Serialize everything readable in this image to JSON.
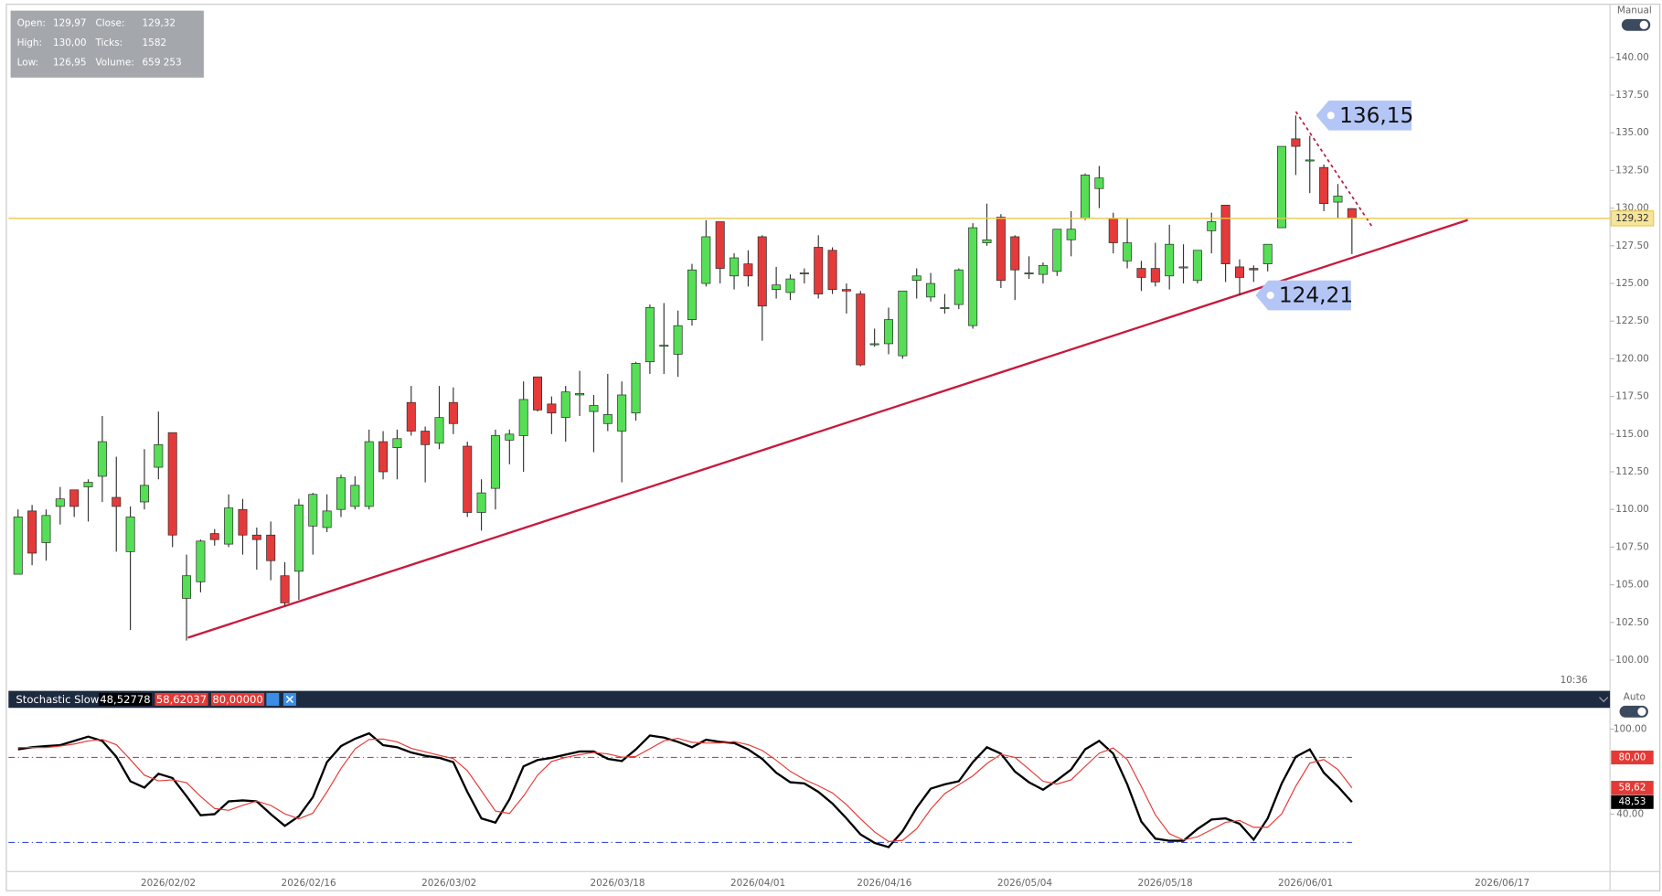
{
  "ui": {
    "info": [
      [
        "Open:",
        "129,97",
        "Close:",
        "129,32"
      ],
      [
        "High:",
        "130,00",
        "Ticks:",
        "1582"
      ],
      [
        "Low:",
        "126,95",
        "Volume:",
        "659 253"
      ]
    ],
    "mode_top": "Manual",
    "mode_bottom": "Auto",
    "clock": "10:36"
  },
  "chart_data": [
    {
      "type": "candlestick",
      "up_color": "#56de56",
      "down_color": "#e53a3a",
      "categories": [
        null,
        null,
        null,
        null,
        null,
        null,
        null,
        null,
        null,
        null,
        null,
        "2026/02/02",
        null,
        null,
        null,
        null,
        null,
        null,
        null,
        null,
        null,
        "2026/02/16",
        null,
        null,
        null,
        null,
        null,
        null,
        null,
        null,
        null,
        "2026/03/02",
        null,
        null,
        null,
        null,
        null,
        null,
        null,
        null,
        null,
        null,
        null,
        "2026/03/18",
        null,
        null,
        null,
        null,
        null,
        null,
        null,
        null,
        null,
        "2026/04/01",
        null,
        null,
        null,
        null,
        null,
        null,
        null,
        null,
        "2026/04/16",
        null,
        null,
        null,
        null,
        null,
        null,
        null,
        null,
        null,
        "2026/05/04",
        null,
        null,
        null,
        null,
        null,
        null,
        null,
        null,
        null,
        "2026/05/18",
        null,
        null,
        null,
        null,
        null,
        null,
        null,
        null,
        null,
        "2026/06/01",
        null,
        null,
        null,
        null,
        null,
        null,
        null,
        null,
        null,
        null,
        null,
        null,
        null,
        "2026/06/17",
        null,
        null,
        null,
        null,
        null,
        null,
        null
      ],
      "open": [
        105.7,
        109.9,
        107.8,
        110.2,
        111.3,
        111.5,
        112.2,
        110.8,
        107.2,
        110.5,
        112.8,
        115.1,
        104.1,
        105.2,
        108.4,
        107.7,
        110.0,
        108.3,
        108.3,
        105.6,
        105.9,
        108.9,
        108.8,
        110.0,
        110.2,
        110.2,
        114.5,
        114.1,
        117.1,
        115.2,
        114.4,
        117.1,
        114.2,
        109.8,
        111.4,
        114.6,
        114.9,
        118.8,
        117.0,
        116.1,
        117.6,
        116.5,
        115.7,
        115.2,
        116.4,
        119.8,
        120.9,
        120.3,
        122.6,
        125.0,
        129.1,
        125.5,
        126.3,
        128.1,
        124.6,
        124.4,
        125.7,
        127.4,
        127.2,
        124.6,
        124.3,
        121.0,
        121.0,
        120.2,
        125.2,
        124.1,
        123.4,
        123.6,
        122.2,
        127.7,
        129.4,
        128.1,
        125.7,
        125.6,
        125.8,
        127.9,
        129.3,
        131.3,
        129.3,
        126.5,
        126.0,
        126.0,
        125.5,
        126.1,
        125.2,
        128.5,
        130.2,
        126.1,
        126.0,
        126.3,
        128.7,
        134.6,
        133.2,
        132.7,
        130.4,
        129.97,
        null,
        null,
        null,
        null,
        null,
        null,
        null,
        null,
        null,
        null,
        null,
        null,
        null,
        null,
        null,
        null,
        null,
        null
      ],
      "high": [
        110.0,
        110.3,
        110.0,
        111.5,
        111.3,
        112.0,
        116.2,
        113.5,
        110.2,
        114.0,
        116.5,
        115.1,
        107.0,
        108.0,
        108.7,
        111.0,
        110.7,
        108.8,
        109.2,
        106.5,
        110.7,
        111.1,
        111.0,
        112.3,
        112.2,
        115.3,
        115.2,
        115.3,
        118.2,
        115.5,
        118.2,
        118.1,
        114.5,
        112.0,
        115.3,
        115.3,
        118.5,
        118.8,
        117.5,
        118.2,
        119.2,
        117.6,
        119.0,
        118.5,
        119.8,
        123.6,
        123.7,
        123.2,
        126.3,
        129.2,
        129.1,
        127.0,
        127.2,
        128.2,
        126.1,
        125.6,
        126.0,
        128.2,
        127.4,
        125.0,
        124.5,
        122.0,
        123.4,
        124.5,
        126.0,
        125.7,
        124.3,
        126.0,
        129.0,
        130.3,
        129.6,
        128.2,
        126.8,
        126.4,
        128.6,
        129.8,
        132.3,
        132.8,
        129.7,
        129.3,
        126.5,
        127.7,
        128.9,
        127.6,
        127.2,
        129.7,
        130.2,
        126.6,
        126.2,
        127.6,
        134.1,
        136.15,
        134.8,
        132.9,
        131.6,
        130.0,
        null,
        null,
        null,
        null,
        null,
        null,
        null,
        null,
        null,
        null,
        null,
        null,
        null,
        null,
        null,
        null,
        null,
        null
      ],
      "low": [
        105.7,
        106.3,
        106.6,
        109.0,
        109.5,
        109.2,
        110.5,
        107.2,
        102.0,
        110.0,
        112.0,
        107.5,
        101.3,
        104.5,
        107.6,
        107.5,
        107.0,
        106.0,
        105.3,
        103.6,
        104.0,
        107.0,
        108.5,
        109.5,
        110.0,
        110.0,
        112.0,
        112.0,
        114.9,
        111.8,
        114.0,
        115.0,
        109.5,
        108.6,
        110.0,
        113.0,
        112.5,
        116.5,
        115.0,
        114.5,
        116.2,
        113.8,
        115.2,
        111.8,
        115.9,
        119.0,
        119.0,
        118.8,
        122.2,
        124.8,
        125.0,
        124.6,
        124.8,
        121.2,
        124.0,
        123.9,
        125.0,
        124.0,
        124.3,
        123.0,
        119.5,
        120.8,
        120.3,
        120.0,
        124.0,
        123.8,
        123.0,
        123.3,
        122.0,
        127.5,
        124.7,
        123.9,
        125.3,
        125.0,
        125.5,
        126.8,
        129.2,
        130.0,
        127.0,
        126.0,
        124.5,
        124.8,
        124.6,
        125.0,
        125.0,
        127.0,
        125.1,
        124.2,
        125.1,
        125.8,
        128.7,
        132.2,
        131.0,
        129.8,
        129.3,
        126.95,
        null,
        null,
        null,
        null,
        null,
        null,
        null,
        null,
        null,
        null,
        null,
        null,
        null,
        null,
        null,
        null,
        null,
        null
      ],
      "close": [
        109.5,
        107.1,
        109.6,
        110.7,
        110.2,
        111.8,
        114.5,
        110.2,
        109.5,
        111.6,
        114.3,
        108.3,
        105.6,
        107.9,
        108.0,
        110.1,
        108.3,
        108.0,
        106.6,
        103.8,
        110.3,
        111.0,
        109.9,
        112.1,
        111.6,
        114.5,
        112.5,
        114.7,
        115.2,
        114.3,
        116.1,
        115.7,
        109.8,
        111.1,
        114.9,
        115.0,
        117.3,
        116.6,
        116.4,
        117.8,
        117.7,
        116.9,
        116.3,
        117.6,
        119.7,
        123.4,
        120.9,
        122.2,
        125.9,
        128.1,
        126.0,
        126.7,
        125.5,
        123.5,
        124.9,
        125.3,
        125.7,
        124.3,
        124.6,
        124.5,
        119.6,
        121.0,
        122.6,
        124.5,
        125.5,
        125.0,
        123.4,
        125.9,
        128.7,
        127.9,
        125.2,
        125.9,
        125.7,
        126.2,
        128.6,
        128.6,
        132.2,
        132.0,
        127.7,
        127.7,
        125.4,
        125.1,
        127.6,
        126.1,
        127.2,
        129.1,
        126.3,
        125.4,
        125.9,
        127.6,
        134.1,
        134.1,
        133.2,
        130.3,
        130.8,
        129.32,
        null,
        null,
        null,
        null,
        null,
        null,
        null,
        null,
        null,
        null,
        null,
        null,
        null,
        null,
        null,
        null,
        null,
        null
      ],
      "ylim": [
        98.1,
        143.25
      ],
      "yticks": [
        {
          "value": 100,
          "label": "100.00"
        },
        {
          "value": 102.5,
          "label": "102.50"
        },
        {
          "value": 105,
          "label": "105.00"
        },
        {
          "value": 107.5,
          "label": "107.50"
        },
        {
          "value": 110,
          "label": "110.00"
        },
        {
          "value": 112.5,
          "label": "112.50"
        },
        {
          "value": 115,
          "label": "115.00"
        },
        {
          "value": 117.5,
          "label": "117.50"
        },
        {
          "value": 120,
          "label": "120.00"
        },
        {
          "value": 122.5,
          "label": "122.50"
        },
        {
          "value": 125,
          "label": "125.00"
        },
        {
          "value": 127.5,
          "label": "127.50"
        },
        {
          "value": 130,
          "label": "130.00"
        },
        {
          "value": 132.5,
          "label": "132.50"
        },
        {
          "value": 135,
          "label": "135.00"
        },
        {
          "value": 137.5,
          "label": "137.50"
        },
        {
          "value": 140,
          "label": "140.00"
        }
      ],
      "price_line": {
        "value": 129.32,
        "label": "129,32",
        "color": "#e8c84a"
      },
      "annotations": [
        {
          "value": 136.15,
          "label": "136,15"
        },
        {
          "value": 124.21,
          "label": "124,21"
        }
      ]
    },
    {
      "type": "line",
      "title": "Stochastic Slow",
      "header_values": [
        {
          "label": "48,52778",
          "color": "#000000"
        },
        {
          "label": "58,62037",
          "color": "#e53935"
        },
        {
          "label": "80,00000",
          "color": "#e53935"
        }
      ],
      "ylim": [
        0,
        113.5
      ],
      "yticks": [
        {
          "value": 100,
          "label": "100.00"
        },
        {
          "value": 40,
          "label": "40.00"
        }
      ],
      "levels": [
        {
          "value": 80,
          "color": "#e53935"
        },
        {
          "value": 20,
          "color": "#3a4fd8"
        }
      ],
      "axis_labels": [
        {
          "value": 80,
          "label": "80,00",
          "color": "#e53935"
        },
        {
          "value": 58.62,
          "label": "58,62",
          "color": "#e53935"
        },
        {
          "value": 48.53,
          "label": "48,53",
          "color": "#000000"
        }
      ],
      "series": [
        {
          "color": "#000000",
          "values": [
            85.7,
            87.2,
            88.0,
            88.7,
            91.7,
            94.7,
            91.7,
            80.5,
            63.2,
            58.7,
            68.5,
            65.5,
            52.7,
            39.2,
            40.0,
            49.0,
            49.7,
            49.0,
            40.0,
            31.7,
            38.5,
            52.0,
            76.7,
            88.0,
            93.2,
            97.0,
            88.7,
            87.2,
            83.5,
            81.2,
            79.7,
            76.7,
            55.7,
            37.0,
            34.0,
            50.5,
            73.7,
            78.2,
            79.7,
            82.0,
            84.2,
            84.2,
            79.0,
            77.5,
            85.7,
            95.5,
            94.0,
            91.0,
            87.2,
            92.5,
            91.0,
            90.2,
            85.7,
            79.0,
            69.2,
            62.5,
            61.7,
            55.7,
            47.5,
            37.0,
            25.7,
            19.7,
            16.7,
            28.0,
            44.5,
            58.0,
            61.0,
            63.2,
            76.7,
            87.2,
            82.7,
            70.0,
            62.5,
            57.2,
            64.0,
            71.5,
            85.7,
            91.7,
            82.7,
            61.0,
            34.7,
            22.7,
            21.2,
            21.2,
            29.5,
            36.2,
            37.0,
            33.2,
            22.0,
            37.0,
            61.7,
            80.5,
            85.7,
            69.2,
            59.5,
            48.53,
            null,
            null,
            null,
            null,
            null,
            null,
            null,
            null,
            null,
            null,
            null,
            null,
            null,
            null,
            null,
            null,
            null,
            null
          ]
        },
        {
          "color": "#e53935",
          "values": [
            87.0,
            87.0,
            87.0,
            88.0,
            89.5,
            91.7,
            92.7,
            89.0,
            78.5,
            67.5,
            63.5,
            64.2,
            62.2,
            52.5,
            44.0,
            42.7,
            46.2,
            49.2,
            46.2,
            40.2,
            36.7,
            40.7,
            55.7,
            72.2,
            86.0,
            92.7,
            93.0,
            91.0,
            86.5,
            84.0,
            81.5,
            79.2,
            70.7,
            56.5,
            42.2,
            40.5,
            52.7,
            67.5,
            77.2,
            80.0,
            82.0,
            83.5,
            82.5,
            80.2,
            80.7,
            86.2,
            91.7,
            93.5,
            90.7,
            90.2,
            90.2,
            91.2,
            89.0,
            85.0,
            78.0,
            70.2,
            64.5,
            60.0,
            55.0,
            46.7,
            36.7,
            27.5,
            20.7,
            21.5,
            29.7,
            43.5,
            54.5,
            60.7,
            67.0,
            75.7,
            82.2,
            80.0,
            71.7,
            63.2,
            61.2,
            64.2,
            73.7,
            83.0,
            86.7,
            78.5,
            59.5,
            39.5,
            26.2,
            21.7,
            24.0,
            29.0,
            34.2,
            35.5,
            30.7,
            30.7,
            40.2,
            59.7,
            76.0,
            78.5,
            71.5,
            58.62,
            null,
            null,
            null,
            null,
            null,
            null,
            null,
            null,
            null,
            null,
            null,
            null,
            null,
            null,
            null,
            null,
            null,
            null
          ]
        }
      ]
    }
  ]
}
